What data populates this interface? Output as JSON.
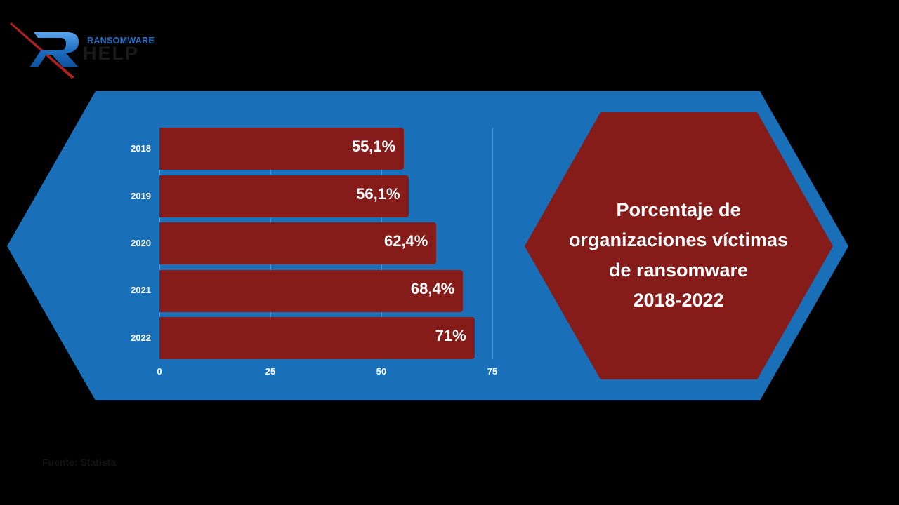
{
  "logo": {
    "top_text": "RANSOMWARE",
    "bottom_text": "HELP",
    "icon": "r-letter-logo-icon"
  },
  "colors": {
    "background": "#000000",
    "panel_blue": "#1a70b8",
    "bar_red": "#851c19",
    "text": "#ffffff"
  },
  "title": {
    "lines": [
      "Porcentaje de",
      "organizaciones víctimas",
      "de ransomware",
      "2018-2022"
    ]
  },
  "footer": {
    "text": "Fuente: Statista"
  },
  "chart_data": {
    "type": "bar",
    "orientation": "horizontal",
    "title": "Porcentaje de organizaciones víctimas de ransomware 2018-2022",
    "categories": [
      "2018",
      "2019",
      "2020",
      "2021",
      "2022"
    ],
    "values": [
      55.1,
      56.1,
      62.4,
      68.4,
      71
    ],
    "value_labels": [
      "55,1%",
      "56,1%",
      "62,4%",
      "68,4%",
      "71%"
    ],
    "xlabel": "",
    "ylabel": "",
    "xlim": [
      0,
      75
    ],
    "x_ticks": [
      "0",
      "25",
      "50",
      "75"
    ],
    "grid": true,
    "legend": null
  }
}
